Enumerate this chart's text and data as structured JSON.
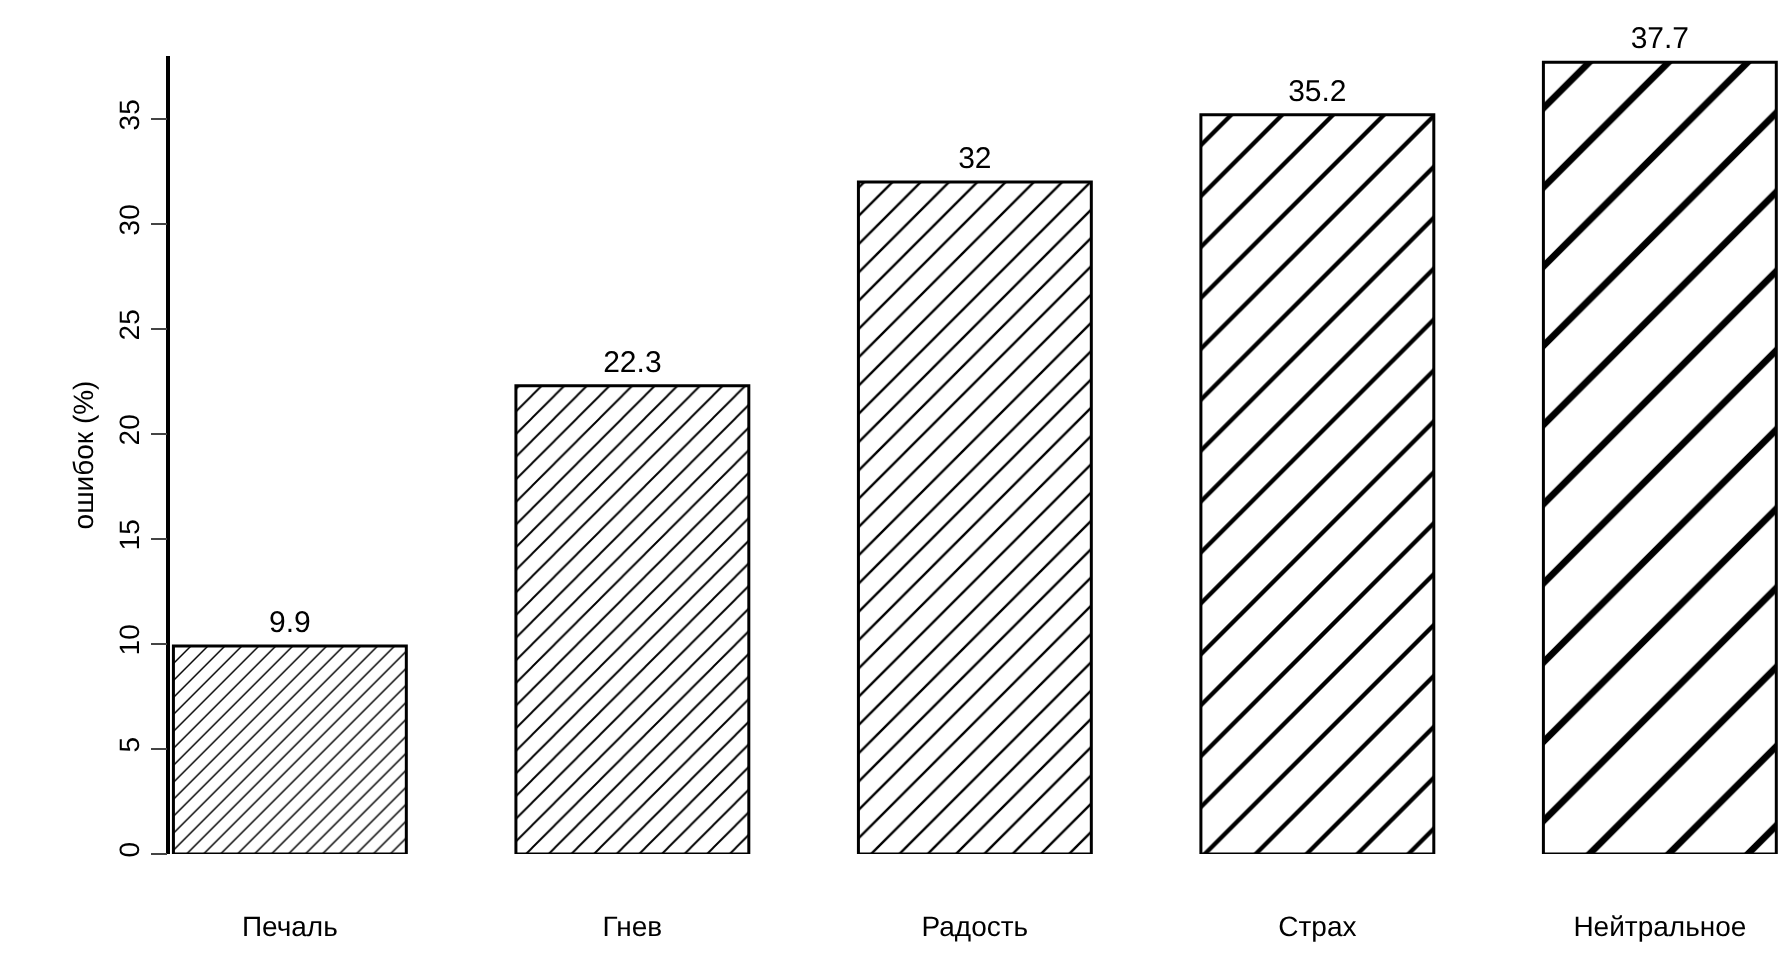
{
  "chart_data": {
    "type": "bar",
    "ylabel": "ошибок (%)",
    "categories": [
      "Печаль",
      "Гнев",
      "Радость",
      "Страх",
      "Нейтральное"
    ],
    "values": [
      9.9,
      22.3,
      32,
      35.2,
      37.7
    ],
    "color": "#000000",
    "ylim": [
      0,
      38
    ],
    "yticks": [
      0,
      5,
      10,
      15,
      20,
      25,
      30,
      35
    ],
    "data_labels": true,
    "grid": false
  }
}
